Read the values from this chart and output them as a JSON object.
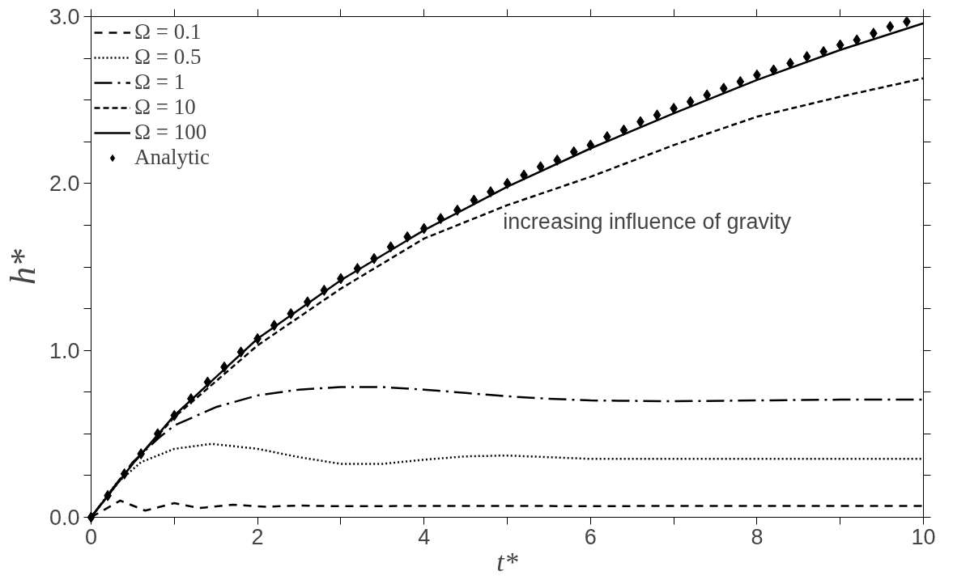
{
  "chart_data": {
    "type": "line",
    "xlabel": "t*",
    "ylabel": "h*",
    "xlim": [
      0,
      10
    ],
    "ylim": [
      0,
      3
    ],
    "xticks": [
      0,
      {
        "value": 1,
        "label": null
      },
      2,
      {
        "value": 3,
        "label": null
      },
      4,
      {
        "value": 5,
        "label": null
      },
      6,
      {
        "value": 7,
        "label": null
      },
      8,
      {
        "value": 9,
        "label": null
      },
      10
    ],
    "yticks": [
      {
        "value": 0,
        "label": "0.0"
      },
      {
        "value": 0.25,
        "label": null
      },
      {
        "value": 0.5,
        "label": null
      },
      {
        "value": 0.75,
        "label": null
      },
      {
        "value": 1,
        "label": "1.0"
      },
      {
        "value": 1.25,
        "label": null
      },
      {
        "value": 1.5,
        "label": null
      },
      {
        "value": 1.75,
        "label": null
      },
      {
        "value": 2,
        "label": "2.0"
      },
      {
        "value": 2.25,
        "label": null
      },
      {
        "value": 2.5,
        "label": null
      },
      {
        "value": 2.75,
        "label": null
      },
      {
        "value": 3,
        "label": "3.0"
      }
    ],
    "grid": false,
    "legend": "top left",
    "annotations": [
      "increasing influence of gravity"
    ],
    "series": [
      {
        "name": "Ω = 0.1",
        "color": "#000000",
        "line_style": "dashed",
        "x": [
          0,
          0.35,
          0.65,
          1.0,
          1.3,
          1.7,
          2.1,
          2.5,
          3,
          4,
          6,
          8,
          10
        ],
        "values": [
          0,
          0.1,
          0.04,
          0.085,
          0.055,
          0.075,
          0.063,
          0.07,
          0.066,
          0.068,
          0.067,
          0.068,
          0.068
        ]
      },
      {
        "name": "Ω = 0.5",
        "color": "#000000",
        "line_style": "dotted",
        "x": [
          0,
          0.3,
          0.6,
          1,
          1.45,
          2,
          2.5,
          3,
          3.5,
          4,
          4.5,
          5,
          5.5,
          6,
          7,
          8,
          9,
          10
        ],
        "values": [
          0,
          0.2,
          0.33,
          0.41,
          0.44,
          0.41,
          0.36,
          0.32,
          0.32,
          0.345,
          0.365,
          0.37,
          0.36,
          0.35,
          0.35,
          0.35,
          0.35,
          0.35
        ]
      },
      {
        "name": "Ω = 1",
        "color": "#000000",
        "line_style": "dashdot",
        "x": [
          0,
          0.5,
          0.8,
          1,
          1.5,
          2,
          2.5,
          3,
          3.5,
          4,
          4.5,
          5,
          5.5,
          6,
          7,
          8,
          9,
          10
        ],
        "values": [
          0,
          0.33,
          0.47,
          0.55,
          0.66,
          0.73,
          0.765,
          0.78,
          0.78,
          0.765,
          0.745,
          0.725,
          0.71,
          0.7,
          0.695,
          0.7,
          0.705,
          0.705
        ]
      },
      {
        "name": "Ω = 10",
        "color": "#000000",
        "line_style": "dashed",
        "x": [
          0,
          0.5,
          1,
          2,
          3,
          4,
          5,
          6,
          7,
          8,
          9,
          10
        ],
        "values": [
          0,
          0.32,
          0.6,
          1.03,
          1.37,
          1.67,
          1.87,
          2.04,
          2.23,
          2.4,
          2.52,
          2.63
        ]
      },
      {
        "name": "Ω = 100",
        "color": "#000000",
        "line_style": "solid",
        "x": [
          0,
          0.5,
          1,
          2,
          3,
          4,
          5,
          6,
          7,
          8,
          9,
          10
        ],
        "values": [
          0,
          0.32,
          0.61,
          1.07,
          1.42,
          1.72,
          1.98,
          2.21,
          2.42,
          2.62,
          2.8,
          2.96
        ]
      },
      {
        "name": "Analytic",
        "type": "scatter",
        "marker": "diamond",
        "color": "#000000",
        "x": [
          0,
          0.2,
          0.4,
          0.6,
          0.8,
          1.0,
          1.2,
          1.4,
          1.6,
          1.8,
          2.0,
          2.2,
          2.4,
          2.6,
          2.8,
          3.0,
          3.2,
          3.4,
          3.6,
          3.8,
          4.0,
          4.2,
          4.4,
          4.6,
          4.8,
          5.0,
          5.2,
          5.4,
          5.6,
          5.8,
          6.0,
          6.2,
          6.4,
          6.6,
          6.8,
          7.0,
          7.2,
          7.4,
          7.6,
          7.8,
          8.0,
          8.2,
          8.4,
          8.6,
          8.8,
          9.0,
          9.2,
          9.4,
          9.6,
          9.8
        ],
        "values": [
          0,
          0.13,
          0.26,
          0.38,
          0.5,
          0.61,
          0.71,
          0.81,
          0.9,
          0.99,
          1.07,
          1.15,
          1.22,
          1.29,
          1.36,
          1.43,
          1.49,
          1.55,
          1.62,
          1.68,
          1.73,
          1.79,
          1.84,
          1.9,
          1.95,
          2.0,
          2.05,
          2.1,
          2.14,
          2.19,
          2.23,
          2.28,
          2.32,
          2.37,
          2.41,
          2.45,
          2.49,
          2.53,
          2.57,
          2.61,
          2.65,
          2.68,
          2.72,
          2.76,
          2.79,
          2.83,
          2.86,
          2.9,
          2.94,
          2.97
        ]
      }
    ]
  }
}
